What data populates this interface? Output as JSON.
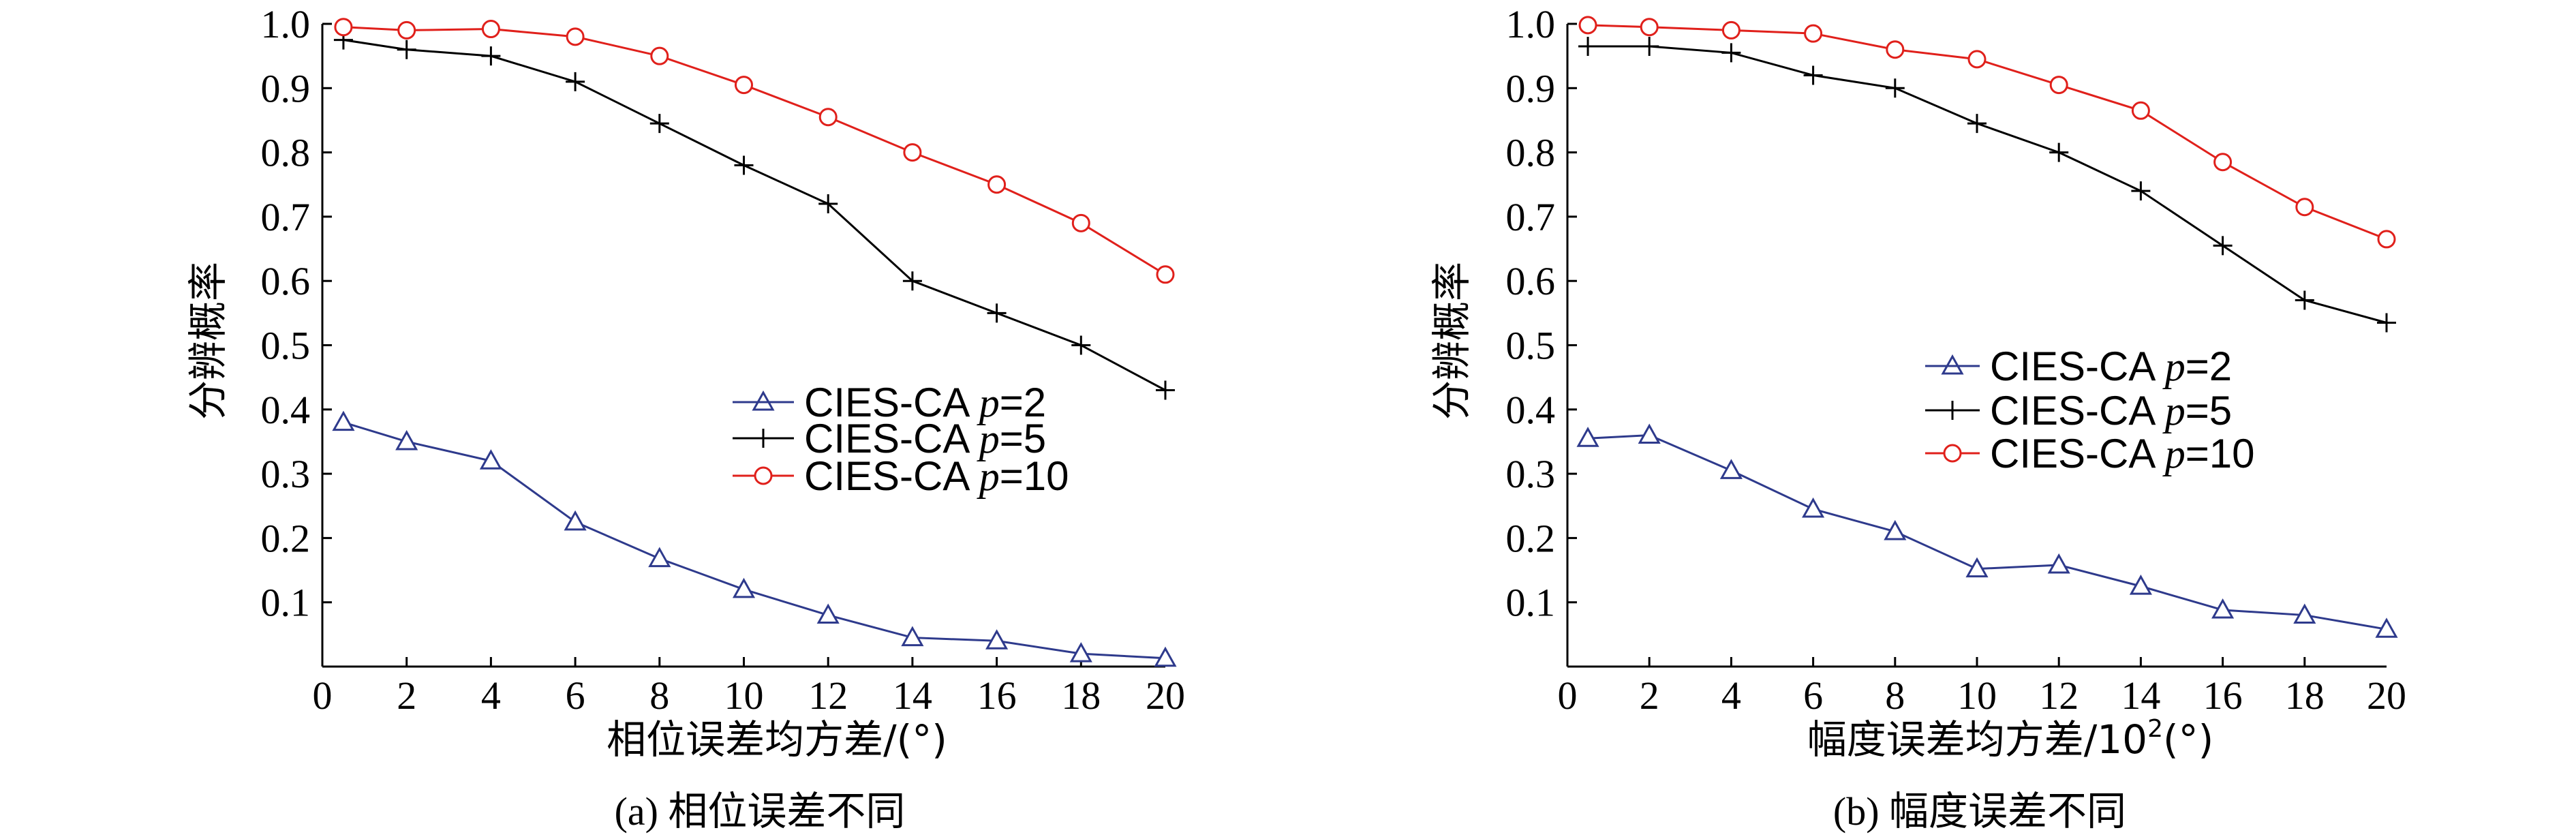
{
  "chart_data": [
    {
      "type": "line",
      "xlabel": "相位误差均方差/(°)",
      "ylabel": "分辨概率",
      "caption": "(a) 相位误差不同",
      "xlim": [
        0,
        20
      ],
      "ylim": [
        0,
        1.0
      ],
      "x_ticks": [
        "0",
        "2",
        "4",
        "6",
        "8",
        "10",
        "12",
        "14",
        "16",
        "18",
        "20"
      ],
      "y_ticks": [
        "0.1",
        "0.2",
        "0.3",
        "0.4",
        "0.5",
        "0.6",
        "0.7",
        "0.8",
        "0.9",
        "1.0"
      ],
      "legend_position": "center-right",
      "series": [
        {
          "name_prefix": "CIES-CA ",
          "name_var": "p",
          "name_suffix": "=2",
          "color": "#2e3a8c",
          "marker": "triangle",
          "x": [
            0.5,
            2,
            4,
            6,
            8,
            10,
            12,
            14,
            16,
            18,
            20
          ],
          "y": [
            0.38,
            0.35,
            0.32,
            0.225,
            0.168,
            0.12,
            0.08,
            0.045,
            0.04,
            0.02,
            0.013
          ]
        },
        {
          "name_prefix": "CIES-CA ",
          "name_var": "p",
          "name_suffix": "=5",
          "color": "#000000",
          "marker": "plus",
          "x": [
            0.5,
            2,
            4,
            6,
            8,
            10,
            12,
            14,
            16,
            18,
            20
          ],
          "y": [
            0.975,
            0.96,
            0.95,
            0.91,
            0.845,
            0.78,
            0.72,
            0.6,
            0.55,
            0.5,
            0.43
          ]
        },
        {
          "name_prefix": "CIES-CA ",
          "name_var": "p",
          "name_suffix": "=10",
          "color": "#e0201b",
          "marker": "circle",
          "x": [
            0.5,
            2,
            4,
            6,
            8,
            10,
            12,
            14,
            16,
            18,
            20
          ],
          "y": [
            0.995,
            0.99,
            0.992,
            0.98,
            0.95,
            0.905,
            0.855,
            0.8,
            0.75,
            0.69,
            0.61
          ]
        }
      ]
    },
    {
      "type": "line",
      "xlabel_main": "幅度误差均方差/10",
      "xlabel_sup": "2",
      "xlabel_tail": "(°)",
      "ylabel": "分辨概率",
      "caption": "(b) 幅度误差不同",
      "xlim": [
        0,
        20
      ],
      "ylim": [
        0,
        1.0
      ],
      "x_ticks": [
        "0",
        "2",
        "4",
        "6",
        "8",
        "10",
        "12",
        "14",
        "16",
        "18",
        "20"
      ],
      "y_ticks": [
        "0.1",
        "0.2",
        "0.3",
        "0.4",
        "0.5",
        "0.6",
        "0.7",
        "0.8",
        "0.9",
        "1.0"
      ],
      "legend_position": "center",
      "series": [
        {
          "name_prefix": "CIES-CA ",
          "name_var": "p",
          "name_suffix": "=2",
          "color": "#2e3a8c",
          "marker": "triangle",
          "x": [
            0.5,
            2,
            4,
            6,
            8,
            10,
            12,
            14,
            16,
            18,
            20
          ],
          "y": [
            0.355,
            0.36,
            0.305,
            0.245,
            0.21,
            0.152,
            0.158,
            0.125,
            0.088,
            0.08,
            0.058
          ]
        },
        {
          "name_prefix": "CIES-CA ",
          "name_var": "p",
          "name_suffix": "=5",
          "color": "#000000",
          "marker": "plus",
          "x": [
            0.5,
            2,
            4,
            6,
            8,
            10,
            12,
            14,
            16,
            18,
            20
          ],
          "y": [
            0.965,
            0.965,
            0.955,
            0.92,
            0.9,
            0.845,
            0.8,
            0.74,
            0.655,
            0.57,
            0.535
          ]
        },
        {
          "name_prefix": "CIES-CA ",
          "name_var": "p",
          "name_suffix": "=10",
          "color": "#e0201b",
          "marker": "circle",
          "x": [
            0.5,
            2,
            4,
            6,
            8,
            10,
            12,
            14,
            16,
            18,
            20
          ],
          "y": [
            0.998,
            0.995,
            0.99,
            0.985,
            0.96,
            0.945,
            0.905,
            0.865,
            0.785,
            0.715,
            0.665
          ]
        }
      ]
    }
  ]
}
